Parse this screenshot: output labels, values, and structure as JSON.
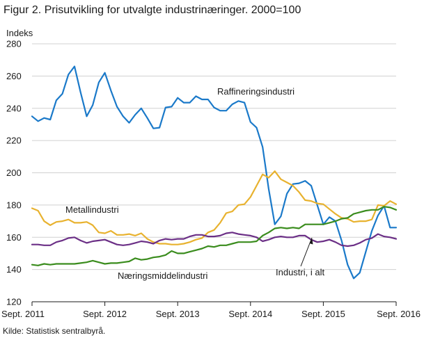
{
  "title": "Figur 2. Prisutvikling for utvalgte industrinæringer. 2000=100",
  "source": "Kilde: Statistisk sentralbyrå.",
  "chart_data": {
    "type": "line",
    "ylabel": "Indeks",
    "ylim": [
      120,
      280
    ],
    "yticks": [
      120,
      140,
      160,
      180,
      200,
      220,
      240,
      260,
      280
    ],
    "grid": true,
    "x_ticks": [
      {
        "index": 0,
        "label": "Sept. 2011"
      },
      {
        "index": 12,
        "label": "Sept. 2012"
      },
      {
        "index": 24,
        "label": "Sept. 2013"
      },
      {
        "index": 36,
        "label": "Sept. 2014"
      },
      {
        "index": 48,
        "label": "Sept. 2015"
      },
      {
        "index": 60,
        "label": "Sept. 2016"
      }
    ],
    "series": [
      {
        "name": "Raffineringsindustri",
        "color": "#1a79c9",
        "values": [
          235,
          232,
          234,
          233,
          245,
          249,
          261,
          266,
          250,
          235,
          242,
          256,
          262,
          251,
          241,
          235,
          231,
          236,
          240,
          234,
          227.5,
          228,
          240.5,
          241,
          246.5,
          243.5,
          243.5,
          247.5,
          245.5,
          245.5,
          240.5,
          238.5,
          238.5,
          242.5,
          244.5,
          243.5,
          231.5,
          228,
          216,
          190,
          168,
          173,
          187,
          193,
          193.5,
          195,
          192,
          180,
          168,
          172.5,
          170,
          158,
          143,
          134.5,
          138,
          151,
          164,
          173.5,
          179.5,
          166,
          166
        ]
      },
      {
        "name": "Metallindustri",
        "color": "#e8b22f",
        "values": [
          178,
          176.5,
          170,
          167.5,
          169.5,
          170,
          171,
          169,
          169,
          169.5,
          167.5,
          163,
          162.5,
          164,
          161.5,
          161.5,
          162,
          161,
          162.5,
          159,
          157,
          156,
          156,
          155.5,
          155.5,
          156,
          157,
          158.5,
          159.5,
          163,
          164.5,
          169,
          175,
          176,
          180,
          180.5,
          185,
          192,
          199,
          197,
          201,
          196,
          194,
          192,
          188,
          183,
          182.5,
          181,
          180.5,
          177.5,
          174.5,
          172,
          171.5,
          169.5,
          170,
          170,
          171,
          180,
          179.5,
          182.5,
          180.5
        ]
      },
      {
        "name": "Industri, i alt",
        "color": "#6b2f86",
        "values": [
          155.5,
          155.5,
          155,
          155,
          157,
          158,
          159.5,
          160,
          158,
          156.5,
          157.5,
          158,
          158.5,
          157,
          155.5,
          155,
          155.5,
          156.5,
          157.5,
          157,
          156,
          158,
          159,
          158.5,
          159,
          159,
          160.5,
          161.5,
          161.5,
          160.5,
          160.5,
          161,
          162.5,
          163,
          162,
          161.5,
          161,
          160,
          157.5,
          158.5,
          160,
          160.5,
          160,
          160,
          161,
          161,
          158.5,
          157,
          157.5,
          158.5,
          157,
          155,
          154.5,
          155,
          156.5,
          158.5,
          159.5,
          162,
          160.5,
          160,
          159
        ]
      },
      {
        "name": "Næringsmiddelindustri",
        "color": "#3a8c1d",
        "values": [
          143,
          142.5,
          143.5,
          143,
          143.5,
          143.5,
          143.5,
          143.5,
          144,
          144.5,
          145.5,
          144.5,
          143.5,
          144,
          144,
          144.5,
          145,
          147,
          146,
          146.5,
          147.5,
          148,
          149,
          151.5,
          150,
          150,
          151,
          152,
          153,
          154.5,
          154,
          155,
          155,
          156,
          157,
          157,
          157,
          157.5,
          161,
          163,
          165.5,
          166,
          165.5,
          166,
          165.5,
          168,
          168,
          168,
          168,
          169,
          170,
          171.5,
          172,
          174.5,
          175.5,
          176.5,
          177,
          177,
          179,
          178.5,
          177
        ]
      }
    ],
    "annotations": [
      {
        "text": "Raffineringsindustri",
        "series": "Raffineringsindustri"
      },
      {
        "text": "Metallindustri",
        "series": "Metallindustri"
      },
      {
        "text": "Industri, i alt",
        "series": "Industri, i alt"
      },
      {
        "text": "Næringsmiddelindustri",
        "series": "Næringsmiddelindustri"
      }
    ]
  }
}
